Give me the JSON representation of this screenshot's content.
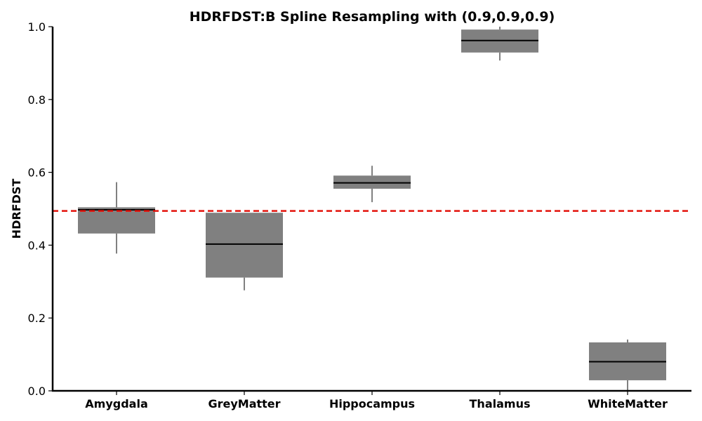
{
  "chart_data": {
    "type": "box",
    "title": "HDRFDST:B Spline Resampling with (0.9,0.9,0.9)",
    "xlabel": "",
    "ylabel": "HDRFDST",
    "ylim": [
      0.0,
      1.0
    ],
    "yticks": [
      0.0,
      0.2,
      0.4,
      0.6,
      0.8,
      1.0
    ],
    "ytick_labels": [
      "0.0",
      "0.2",
      "0.4",
      "0.6",
      "0.8",
      "1.0"
    ],
    "categories": [
      "Amygdala",
      "GreyMatter",
      "Hippocampus",
      "Thalamus",
      "WhiteMatter"
    ],
    "boxes": [
      {
        "label": "Amygdala",
        "whisker_low": 0.377,
        "q1": 0.432,
        "median": 0.497,
        "q3": 0.504,
        "whisker_high": 0.573
      },
      {
        "label": "GreyMatter",
        "whisker_low": 0.276,
        "q1": 0.311,
        "median": 0.403,
        "q3": 0.489,
        "whisker_high": 0.489
      },
      {
        "label": "Hippocampus",
        "whisker_low": 0.518,
        "q1": 0.555,
        "median": 0.571,
        "q3": 0.591,
        "whisker_high": 0.618
      },
      {
        "label": "Thalamus",
        "whisker_low": 0.907,
        "q1": 0.929,
        "median": 0.962,
        "q3": 0.992,
        "whisker_high": 1.0
      },
      {
        "label": "WhiteMatter",
        "whisker_low": 0.0,
        "q1": 0.029,
        "median": 0.08,
        "q3": 0.133,
        "whisker_high": 0.141
      }
    ],
    "reference_line": {
      "y": 0.494,
      "color": "#e3120b",
      "style": "dashed"
    },
    "box_color": "#808080",
    "grid": false,
    "legend": "none"
  }
}
